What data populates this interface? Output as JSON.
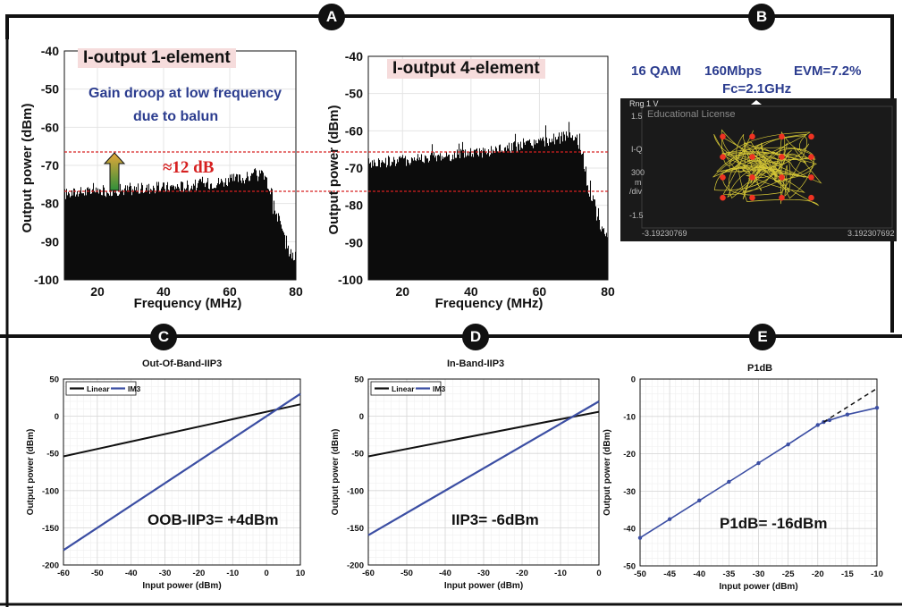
{
  "badges": {
    "a": "A",
    "b": "B",
    "c": "C",
    "d": "D",
    "e": "E"
  },
  "panelA": {
    "left_title": "I-output 1-element",
    "right_title": "I-output 4-element",
    "note_line1": "Gain droop at low frequency",
    "note_line2": "due to balun",
    "delta_label": "≈12 dB",
    "ylabel": "Output power (dBm)",
    "xlabel": "Frequency (MHz)"
  },
  "panelB": {
    "line1_mod": "16 QAM",
    "line1_rate": "160Mbps",
    "line1_evm": "EVM=7.2%",
    "line2_fc": "Fc=2.1GHz",
    "scope_header": "Rng 1  V",
    "scope_license": "Educational License",
    "scope_y_top": "1.5",
    "scope_y_mid": "I-Q",
    "scope_div1": "300",
    "scope_div2": "m",
    "scope_div3": "/div",
    "scope_y_bot": "-1.5",
    "scope_x_left": "-3.19230769",
    "scope_x_right": "3.192307692"
  },
  "panelC": {
    "title": "Out-Of-Band-IIP3",
    "annotation": "OOB-IIP3= +4dBm"
  },
  "panelD": {
    "title": "In-Band-IIP3",
    "annotation": "IIP3= -6dBm"
  },
  "panelE": {
    "title": "P1dB",
    "annotation": "P1dB= -16dBm"
  },
  "colors": {
    "blue_line": "#3b4ea3",
    "black_line": "#111111",
    "red_dashed": "#d62020",
    "annotation_blue": "#2c3d8f",
    "title_box": "#f6dcdc"
  },
  "chart_data": [
    {
      "type": "area",
      "title": "I-output 1-element",
      "xlabel": "Frequency (MHz)",
      "ylabel": "Output power (dBm)",
      "xlim": [
        10,
        80
      ],
      "ylim": [
        -100,
        -40
      ],
      "xticks": [
        20,
        40,
        60,
        80
      ],
      "yticks": [
        -40,
        -50,
        -60,
        -70,
        -80,
        -90,
        -100
      ],
      "x": [
        10,
        15,
        20,
        25,
        30,
        35,
        40,
        45,
        50,
        55,
        60,
        65,
        68,
        70,
        71,
        72,
        74,
        76,
        78,
        80
      ],
      "y": [
        -77.5,
        -77,
        -76.8,
        -76.5,
        -76.3,
        -76,
        -75.8,
        -75.5,
        -75.1,
        -74.6,
        -73.9,
        -73.2,
        -72.8,
        -72.5,
        -73.8,
        -76,
        -80,
        -85,
        -90,
        -95
      ],
      "reference_lines_dBm": [
        -67,
        -77.5
      ],
      "grid": true
    },
    {
      "type": "area",
      "title": "I-output 4-element",
      "xlabel": "Frequency (MHz)",
      "ylabel": "Output power (dBm)",
      "xlim": [
        10,
        80
      ],
      "ylim": [
        -100,
        -40
      ],
      "xticks": [
        20,
        40,
        60,
        80
      ],
      "yticks": [
        -40,
        -50,
        -60,
        -70,
        -80,
        -90,
        -100
      ],
      "x": [
        10,
        15,
        20,
        25,
        30,
        35,
        40,
        45,
        50,
        55,
        60,
        65,
        68,
        70,
        71,
        72,
        74,
        76,
        78,
        80
      ],
      "y": [
        -69,
        -68.5,
        -68,
        -67.5,
        -67,
        -66.5,
        -66,
        -65.5,
        -64.8,
        -64,
        -63.2,
        -62.2,
        -61.5,
        -61,
        -62,
        -64.5,
        -70,
        -77,
        -84,
        -88
      ],
      "reference_lines_dBm": [
        -66,
        -77.5
      ],
      "grid": true
    },
    {
      "type": "line",
      "title": "Out-Of-Band-IIP3",
      "xlabel": "Input power (dBm)",
      "ylabel": "Output power (dBm)",
      "xlim": [
        -60,
        10
      ],
      "ylim": [
        -200,
        50
      ],
      "xticks": [
        -60,
        -50,
        -40,
        -30,
        -20,
        -10,
        0,
        10
      ],
      "yticks": [
        50,
        0,
        -50,
        -100,
        -150,
        -200
      ],
      "legend": "top-left",
      "series": [
        {
          "name": "Linear",
          "x": [
            -60,
            10
          ],
          "y": [
            -54,
            16
          ]
        },
        {
          "name": "IM3",
          "x": [
            -60,
            10
          ],
          "y": [
            -180,
            30
          ]
        }
      ],
      "grid": true
    },
    {
      "type": "line",
      "title": "In-Band-IIP3",
      "xlabel": "Input power (dBm)",
      "ylabel": "Output power (dBm)",
      "xlim": [
        -60,
        0
      ],
      "ylim": [
        -200,
        50
      ],
      "xticks": [
        -60,
        -50,
        -40,
        -30,
        -20,
        -10,
        0
      ],
      "yticks": [
        50,
        0,
        -50,
        -100,
        -150,
        -200
      ],
      "legend": "top-left",
      "series": [
        {
          "name": "Linear",
          "x": [
            -60,
            0
          ],
          "y": [
            -54,
            6
          ]
        },
        {
          "name": "IM3",
          "x": [
            -60,
            0
          ],
          "y": [
            -160,
            20
          ]
        }
      ],
      "grid": true
    },
    {
      "type": "line",
      "title": "P1dB",
      "xlabel": "Input power (dBm)",
      "ylabel": "Output power (dBm)",
      "xlim": [
        -50,
        -10
      ],
      "ylim": [
        -50,
        0
      ],
      "xticks": [
        -50,
        -45,
        -40,
        -35,
        -30,
        -25,
        -20,
        -15,
        -10
      ],
      "yticks": [
        0,
        -10,
        -20,
        -30,
        -40,
        -50
      ],
      "series": [
        {
          "x": [
            -50,
            -45,
            -40,
            -35,
            -30,
            -25,
            -20,
            -19,
            -18,
            -15,
            -10
          ],
          "y": [
            -42.5,
            -37.5,
            -32.5,
            -27.5,
            -22.5,
            -17.5,
            -12.3,
            -11.5,
            -11,
            -9.5,
            -7.7
          ]
        },
        {
          "x": [
            -19,
            -10
          ],
          "y": [
            -11.5,
            -2.5
          ]
        }
      ],
      "grid": true
    },
    {
      "type": "scatter",
      "title": "",
      "xlim": [
        -3.19230769,
        3.192307692
      ],
      "ylim": [
        -1.5,
        1.5
      ],
      "constellation_points": [
        [
          -0.9,
          -0.9
        ],
        [
          -0.9,
          -0.3
        ],
        [
          -0.9,
          0.3
        ],
        [
          -0.9,
          0.9
        ],
        [
          -0.3,
          -0.9
        ],
        [
          -0.3,
          -0.3
        ],
        [
          -0.3,
          0.3
        ],
        [
          -0.3,
          0.9
        ],
        [
          0.3,
          -0.9
        ],
        [
          0.3,
          -0.3
        ],
        [
          0.3,
          0.3
        ],
        [
          0.3,
          0.9
        ],
        [
          0.9,
          -0.9
        ],
        [
          0.9,
          -0.3
        ],
        [
          0.9,
          0.3
        ],
        [
          0.9,
          0.9
        ]
      ]
    }
  ]
}
